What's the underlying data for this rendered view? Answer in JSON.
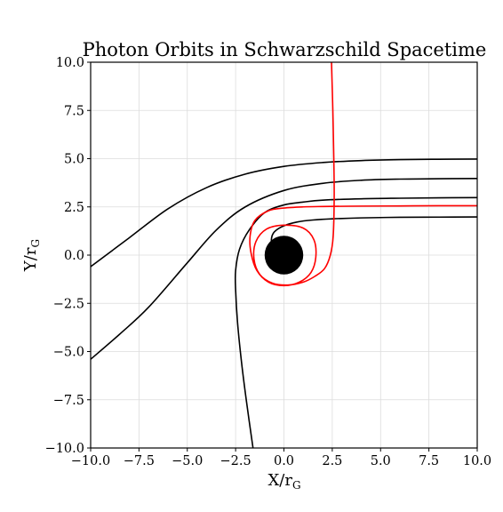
{
  "chart_data": {
    "type": "line",
    "title": "Photon Orbits in Schwarzschild Spacetime",
    "xlabel": "X/r",
    "xlabel_sub": "G",
    "ylabel": "Y/r",
    "ylabel_sub": "G",
    "xlim": [
      -10,
      10
    ],
    "ylim": [
      -10,
      10
    ],
    "xticks": [
      -10,
      -7.5,
      -5,
      -2.5,
      0,
      2.5,
      5,
      7.5,
      10
    ],
    "yticks": [
      -10,
      -7.5,
      -5,
      -2.5,
      0,
      2.5,
      5,
      7.5,
      10
    ],
    "xtick_labels": [
      "−10.0",
      "−7.5",
      "−5.0",
      "−2.5",
      "0.0",
      "2.5",
      "5.0",
      "7.5",
      "10.0"
    ],
    "ytick_labels": [
      "−10.0",
      "−7.5",
      "−5.0",
      "−2.5",
      "0.0",
      "2.5",
      "5.0",
      "7.5",
      "10.0"
    ],
    "grid": true,
    "black_hole": {
      "center": [
        0,
        0
      ],
      "radius": 1.0,
      "color": "#000000"
    },
    "series": [
      {
        "color": "#000000",
        "points": [
          [
            10,
            4.98
          ],
          [
            8,
            4.97
          ],
          [
            6,
            4.95
          ],
          [
            4,
            4.9
          ],
          [
            2,
            4.8
          ],
          [
            0,
            4.6
          ],
          [
            -2,
            4.2
          ],
          [
            -4,
            3.5
          ],
          [
            -6,
            2.4
          ],
          [
            -8,
            0.9
          ],
          [
            -10,
            -0.6
          ]
        ]
      },
      {
        "color": "#000000",
        "points": [
          [
            10,
            3.97
          ],
          [
            8,
            3.96
          ],
          [
            6,
            3.94
          ],
          [
            4,
            3.88
          ],
          [
            2,
            3.72
          ],
          [
            0,
            3.35
          ],
          [
            -2,
            2.5
          ],
          [
            -3.5,
            1.3
          ],
          [
            -5,
            -0.4
          ],
          [
            -7,
            -2.7
          ],
          [
            -8.5,
            -4.1
          ],
          [
            -10,
            -5.4
          ]
        ]
      },
      {
        "color": "#000000",
        "points": [
          [
            10,
            2.98
          ],
          [
            8,
            2.97
          ],
          [
            6,
            2.95
          ],
          [
            4,
            2.92
          ],
          [
            2,
            2.85
          ],
          [
            1,
            2.75
          ],
          [
            0,
            2.6
          ],
          [
            -1,
            2.2
          ],
          [
            -1.8,
            1.3
          ],
          [
            -2.3,
            0.3
          ],
          [
            -2.5,
            -0.8
          ],
          [
            -2.5,
            -1.8
          ],
          [
            -2.4,
            -3.5
          ],
          [
            -2.2,
            -5.5
          ],
          [
            -1.95,
            -7.5
          ],
          [
            -1.6,
            -10
          ]
        ]
      },
      {
        "color": "#000000",
        "points": [
          [
            10,
            1.98
          ],
          [
            8,
            1.97
          ],
          [
            6,
            1.96
          ],
          [
            4,
            1.93
          ],
          [
            2.5,
            1.88
          ],
          [
            1.5,
            1.82
          ],
          [
            0.7,
            1.72
          ],
          [
            0,
            1.52
          ],
          [
            -0.5,
            1.2
          ],
          [
            -0.65,
            0.8
          ],
          [
            -0.55,
            0.5
          ],
          [
            -0.35,
            0.38
          ],
          [
            0,
            0.4
          ]
        ]
      },
      {
        "color": "#ff0000",
        "points": [
          [
            10,
            2.56
          ],
          [
            8,
            2.56
          ],
          [
            6,
            2.55
          ],
          [
            4,
            2.54
          ],
          [
            2,
            2.52
          ],
          [
            1,
            2.5
          ],
          [
            0,
            2.44
          ],
          [
            -0.8,
            2.3
          ],
          [
            -1.5,
            1.8
          ],
          [
            -1.75,
            1.0
          ],
          [
            -1.7,
            0.1
          ],
          [
            -1.4,
            -0.8
          ],
          [
            -0.8,
            -1.4
          ],
          [
            0,
            -1.58
          ],
          [
            0.8,
            -1.4
          ],
          [
            1.4,
            -0.9
          ],
          [
            1.65,
            -0.1
          ],
          [
            1.55,
            0.8
          ],
          [
            1.0,
            1.4
          ],
          [
            0,
            1.55
          ],
          [
            -0.9,
            1.35
          ],
          [
            -1.45,
            0.7
          ],
          [
            -1.55,
            -0.2
          ],
          [
            -1.25,
            -1.0
          ],
          [
            -0.6,
            -1.45
          ],
          [
            0.2,
            -1.55
          ],
          [
            1.0,
            -1.4
          ],
          [
            1.6,
            -1.1
          ],
          [
            2.1,
            -0.7
          ],
          [
            2.4,
            0
          ],
          [
            2.55,
            1.0
          ],
          [
            2.6,
            3
          ],
          [
            2.58,
            5
          ],
          [
            2.53,
            7.5
          ],
          [
            2.46,
            10
          ]
        ]
      }
    ]
  }
}
